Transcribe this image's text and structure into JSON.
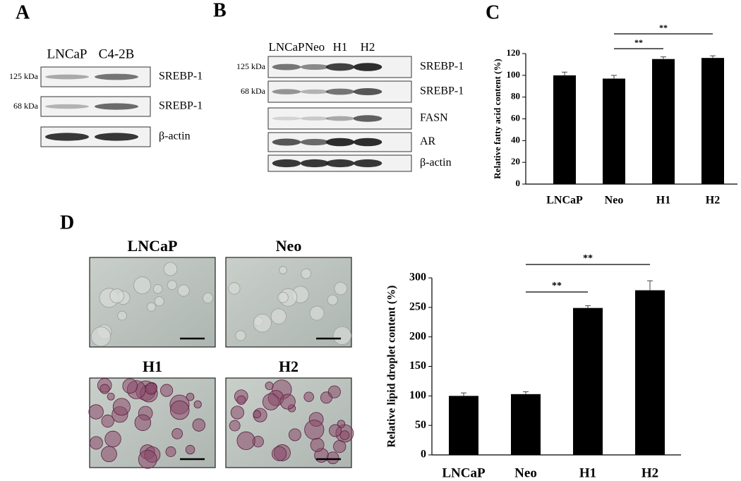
{
  "panels": {
    "a": "A",
    "b": "B",
    "c": "C",
    "d": "D"
  },
  "blot_a": {
    "columns": [
      "LNCaP",
      "C4-2B"
    ],
    "rows": [
      {
        "size": "125 kDa",
        "label": "SREBP-1"
      },
      {
        "size": "68 kDa",
        "label": "SREBP-1"
      },
      {
        "label": "β-actin"
      }
    ]
  },
  "blot_b": {
    "columns": [
      "LNCaP",
      "Neo",
      "H1",
      "H2"
    ],
    "rows": [
      {
        "size": "125 kDa",
        "label": "SREBP-1"
      },
      {
        "size": "68 kDa",
        "label": "SREBP-1"
      },
      {
        "label": "FASN"
      },
      {
        "label": "AR"
      },
      {
        "label": "β-actin"
      }
    ]
  },
  "images": [
    "LNCaP",
    "Neo",
    "H1",
    "H2"
  ],
  "chart_data": [
    {
      "type": "bar",
      "y_label": "Relative fatty acid content (%)",
      "categories": [
        "LNCaP",
        "Neo",
        "H1",
        "H2"
      ],
      "values": [
        100,
        97,
        115,
        116
      ],
      "errors": [
        3,
        3,
        2,
        2
      ],
      "color": "#000000",
      "ylim": [
        0,
        120
      ],
      "yticks": [
        0,
        20,
        40,
        60,
        80,
        100,
        120
      ],
      "brackets": [
        {
          "from": 1,
          "to": 2,
          "label": "**"
        },
        {
          "from": 1,
          "to": 3,
          "label": "**"
        }
      ]
    },
    {
      "type": "bar",
      "y_label": "Relative lipid droplet content (%)",
      "categories": [
        "LNCaP",
        "Neo",
        "H1",
        "H2"
      ],
      "values": [
        100,
        103,
        249,
        279
      ],
      "errors": [
        5,
        4,
        4,
        16
      ],
      "color": "#000000",
      "ylim": [
        0,
        300
      ],
      "yticks": [
        0,
        50,
        100,
        150,
        200,
        250,
        300
      ],
      "brackets": [
        {
          "from": 1,
          "to": 2,
          "label": "**"
        },
        {
          "from": 1,
          "to": 3,
          "label": "**"
        }
      ]
    }
  ]
}
